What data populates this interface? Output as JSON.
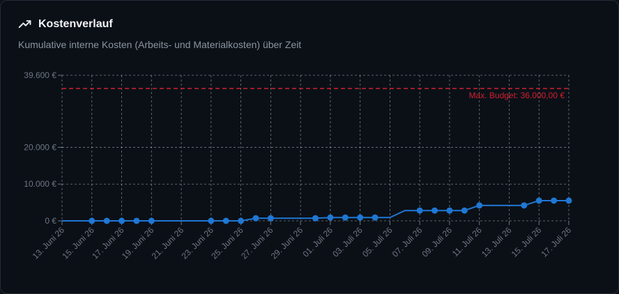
{
  "card": {
    "title": "Kostenverlauf",
    "subtitle": "Kumulative interne Kosten (Arbeits- und Materialkosten) über Zeit",
    "icon": "trending-up-icon"
  },
  "colors": {
    "line": "#1f77d4",
    "budget": "#d0202e",
    "grid": "#c9d1d9",
    "tick": "#6e7681"
  },
  "chart_data": {
    "type": "line",
    "title": "Kostenverlauf",
    "xlabel": "",
    "ylabel": "",
    "x": [
      "13. Juni 26",
      "14. Juni 26",
      "15. Juni 26",
      "16. Juni 26",
      "17. Juni 26",
      "18. Juni 26",
      "19. Juni 26",
      "20. Juni 26",
      "21. Juni 26",
      "22. Juni 26",
      "23. Juni 26",
      "24. Juni 26",
      "25. Juni 26",
      "26. Juni 26",
      "27. Juni 26",
      "28. Juni 26",
      "29. Juni 26",
      "30. Juni 26",
      "01. Juli 26",
      "02. Juli 26",
      "03. Juli 26",
      "04. Juli 26",
      "05. Juli 26",
      "06. Juli 26",
      "07. Juli 26",
      "08. Juli 26",
      "09. Juli 26",
      "10. Juli 26",
      "11. Juli 26",
      "12. Juli 26",
      "13. Juli 26",
      "14. Juli 26",
      "15. Juli 26",
      "16. Juli 26",
      "17. Juli 26"
    ],
    "x_tick_labels": [
      "13. Juni 26",
      "15. Juni 26",
      "17. Juni 26",
      "19. Juni 26",
      "21. Juni 26",
      "23. Juni 26",
      "25. Juni 26",
      "27. Juni 26",
      "29. Juni 26",
      "01. Juli 26",
      "03. Juli 26",
      "05. Juli 26",
      "07. Juli 26",
      "09. Juli 26",
      "11. Juli 26",
      "13. Juli 26",
      "15. Juli 26",
      "17. Juli 26"
    ],
    "y_ticks": [
      0,
      10000,
      20000,
      39600
    ],
    "y_tick_labels": [
      "0 €",
      "10.000 €",
      "20.000 €",
      "39.600 €"
    ],
    "ylim": [
      0,
      39600
    ],
    "grid": true,
    "series": [
      {
        "values": [
          0,
          0,
          0,
          0,
          0,
          0,
          0,
          0,
          0,
          0,
          0,
          0,
          0,
          700,
          700,
          700,
          700,
          700,
          900,
          900,
          900,
          900,
          900,
          2800,
          2800,
          2800,
          2800,
          2800,
          4200,
          4200,
          4200,
          4200,
          5500,
          5500,
          5500
        ],
        "markers": [
          false,
          false,
          true,
          true,
          true,
          true,
          true,
          false,
          false,
          false,
          true,
          true,
          true,
          true,
          true,
          false,
          false,
          true,
          true,
          true,
          true,
          true,
          false,
          false,
          true,
          true,
          true,
          true,
          true,
          false,
          false,
          true,
          true,
          true,
          true
        ]
      }
    ],
    "reference_line": {
      "value": 36000,
      "label": "Max. Budget: 36.000,00 €",
      "style": "dashed"
    }
  }
}
